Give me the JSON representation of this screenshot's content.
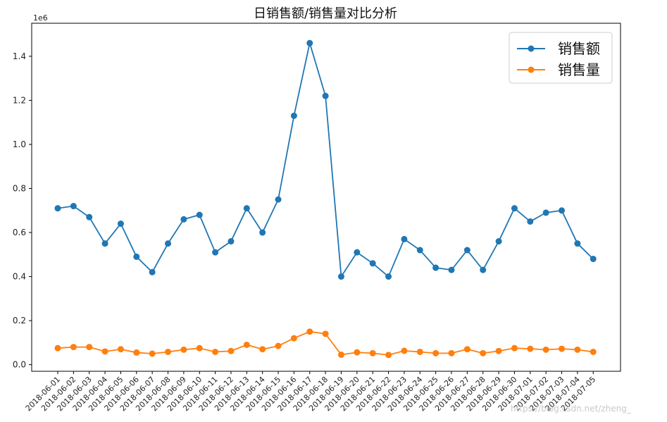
{
  "chart_data": {
    "type": "line",
    "title": "日销售额/销售量对比分析",
    "y_offset_label": "1e6",
    "ylim": [
      -0.03,
      1.55
    ],
    "yticks": [
      0.0,
      0.2,
      0.4,
      0.6,
      0.8,
      1.0,
      1.2,
      1.4
    ],
    "ytick_labels": [
      "0.0",
      "0.2",
      "0.4",
      "0.6",
      "0.8",
      "1.0",
      "1.2",
      "1.4"
    ],
    "legend_position": "top-right",
    "grid": false,
    "categories": [
      "2018-06-01",
      "2018-06-02",
      "2018-06-03",
      "2018-06-04",
      "2018-06-05",
      "2018-06-06",
      "2018-06-07",
      "2018-06-08",
      "2018-06-09",
      "2018-06-10",
      "2018-06-11",
      "2018-06-12",
      "2018-06-13",
      "2018-06-14",
      "2018-06-15",
      "2018-06-16",
      "2018-06-17",
      "2018-06-18",
      "2018-06-19",
      "2018-06-20",
      "2018-06-21",
      "2018-06-22",
      "2018-06-23",
      "2018-06-24",
      "2018-06-25",
      "2018-06-26",
      "2018-06-27",
      "2018-06-28",
      "2018-06-29",
      "2018-06-30",
      "2018-07-01",
      "2018-07-02",
      "2018-07-03",
      "2018-07-04",
      "2018-07-05"
    ],
    "series": [
      {
        "name": "销售额",
        "color": "#1f77b4",
        "values": [
          0.71,
          0.72,
          0.67,
          0.55,
          0.64,
          0.49,
          0.42,
          0.55,
          0.66,
          0.68,
          0.51,
          0.56,
          0.71,
          0.6,
          0.75,
          1.13,
          1.46,
          1.22,
          0.4,
          0.51,
          0.46,
          0.4,
          0.57,
          0.52,
          0.44,
          0.43,
          0.52,
          0.43,
          0.56,
          0.71,
          0.65,
          0.69,
          0.7,
          0.55,
          0.48
        ]
      },
      {
        "name": "销售量",
        "color": "#ff7f0e",
        "values": [
          0.075,
          0.08,
          0.08,
          0.06,
          0.07,
          0.055,
          0.05,
          0.058,
          0.068,
          0.075,
          0.058,
          0.062,
          0.09,
          0.07,
          0.085,
          0.12,
          0.15,
          0.14,
          0.045,
          0.056,
          0.052,
          0.044,
          0.063,
          0.058,
          0.052,
          0.052,
          0.07,
          0.052,
          0.062,
          0.075,
          0.072,
          0.068,
          0.072,
          0.068,
          0.058
        ]
      }
    ]
  },
  "watermark": "https://blog.csdn.net/zheng_"
}
